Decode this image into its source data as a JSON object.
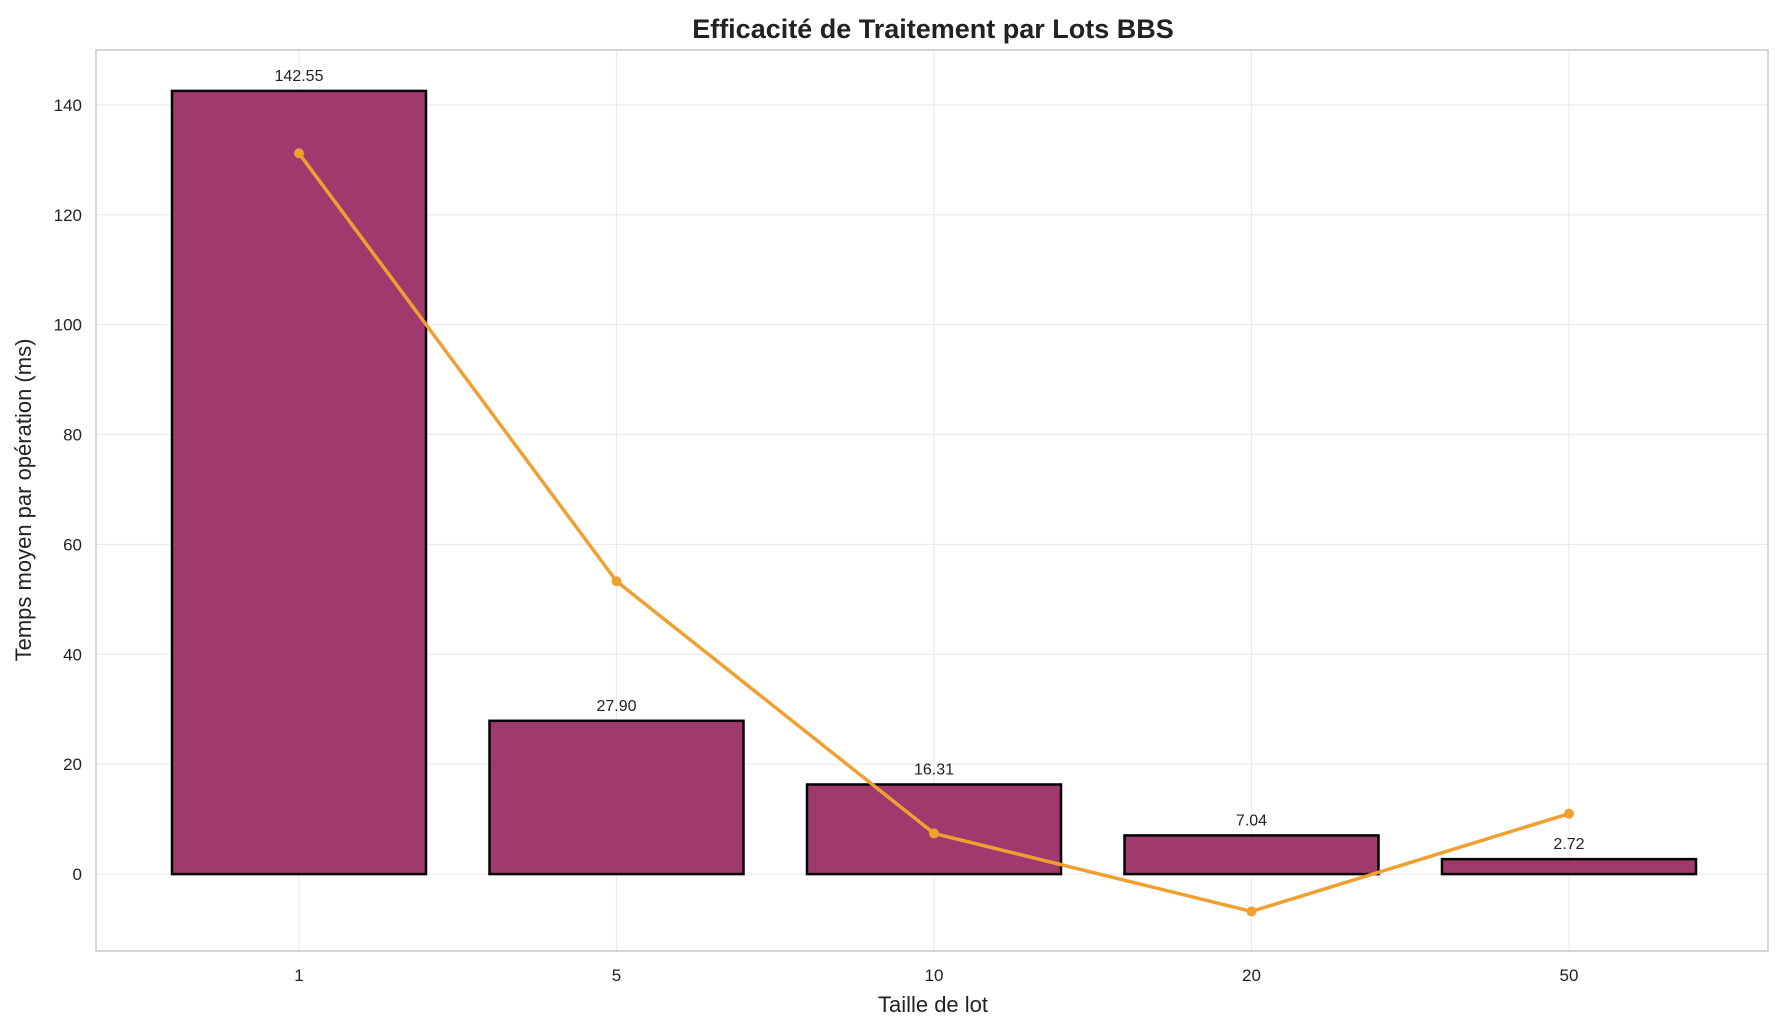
{
  "chart_data": {
    "type": "bar",
    "title": "Efficacité de Traitement par Lots BBS",
    "xlabel": "Taille de lot",
    "ylabel": "Temps moyen par opération (ms)",
    "categories": [
      "1",
      "5",
      "10",
      "20",
      "50"
    ],
    "series": [
      {
        "type": "bar",
        "values": [
          142.55,
          27.9,
          16.31,
          7.04,
          2.72
        ],
        "data_labels": [
          "142.55",
          "27.90",
          "16.31",
          "7.04",
          "2.72"
        ],
        "color": "#a03a6e",
        "edge_color": "#000000"
      },
      {
        "type": "line",
        "values": [
          131.2,
          53.3,
          7.4,
          -6.8,
          11.0
        ],
        "color": "#f0a030"
      }
    ],
    "ylim": [
      -14,
      150
    ],
    "yticks": [
      0,
      20,
      40,
      60,
      80,
      100,
      120,
      140
    ],
    "grid": true,
    "legend": false
  }
}
